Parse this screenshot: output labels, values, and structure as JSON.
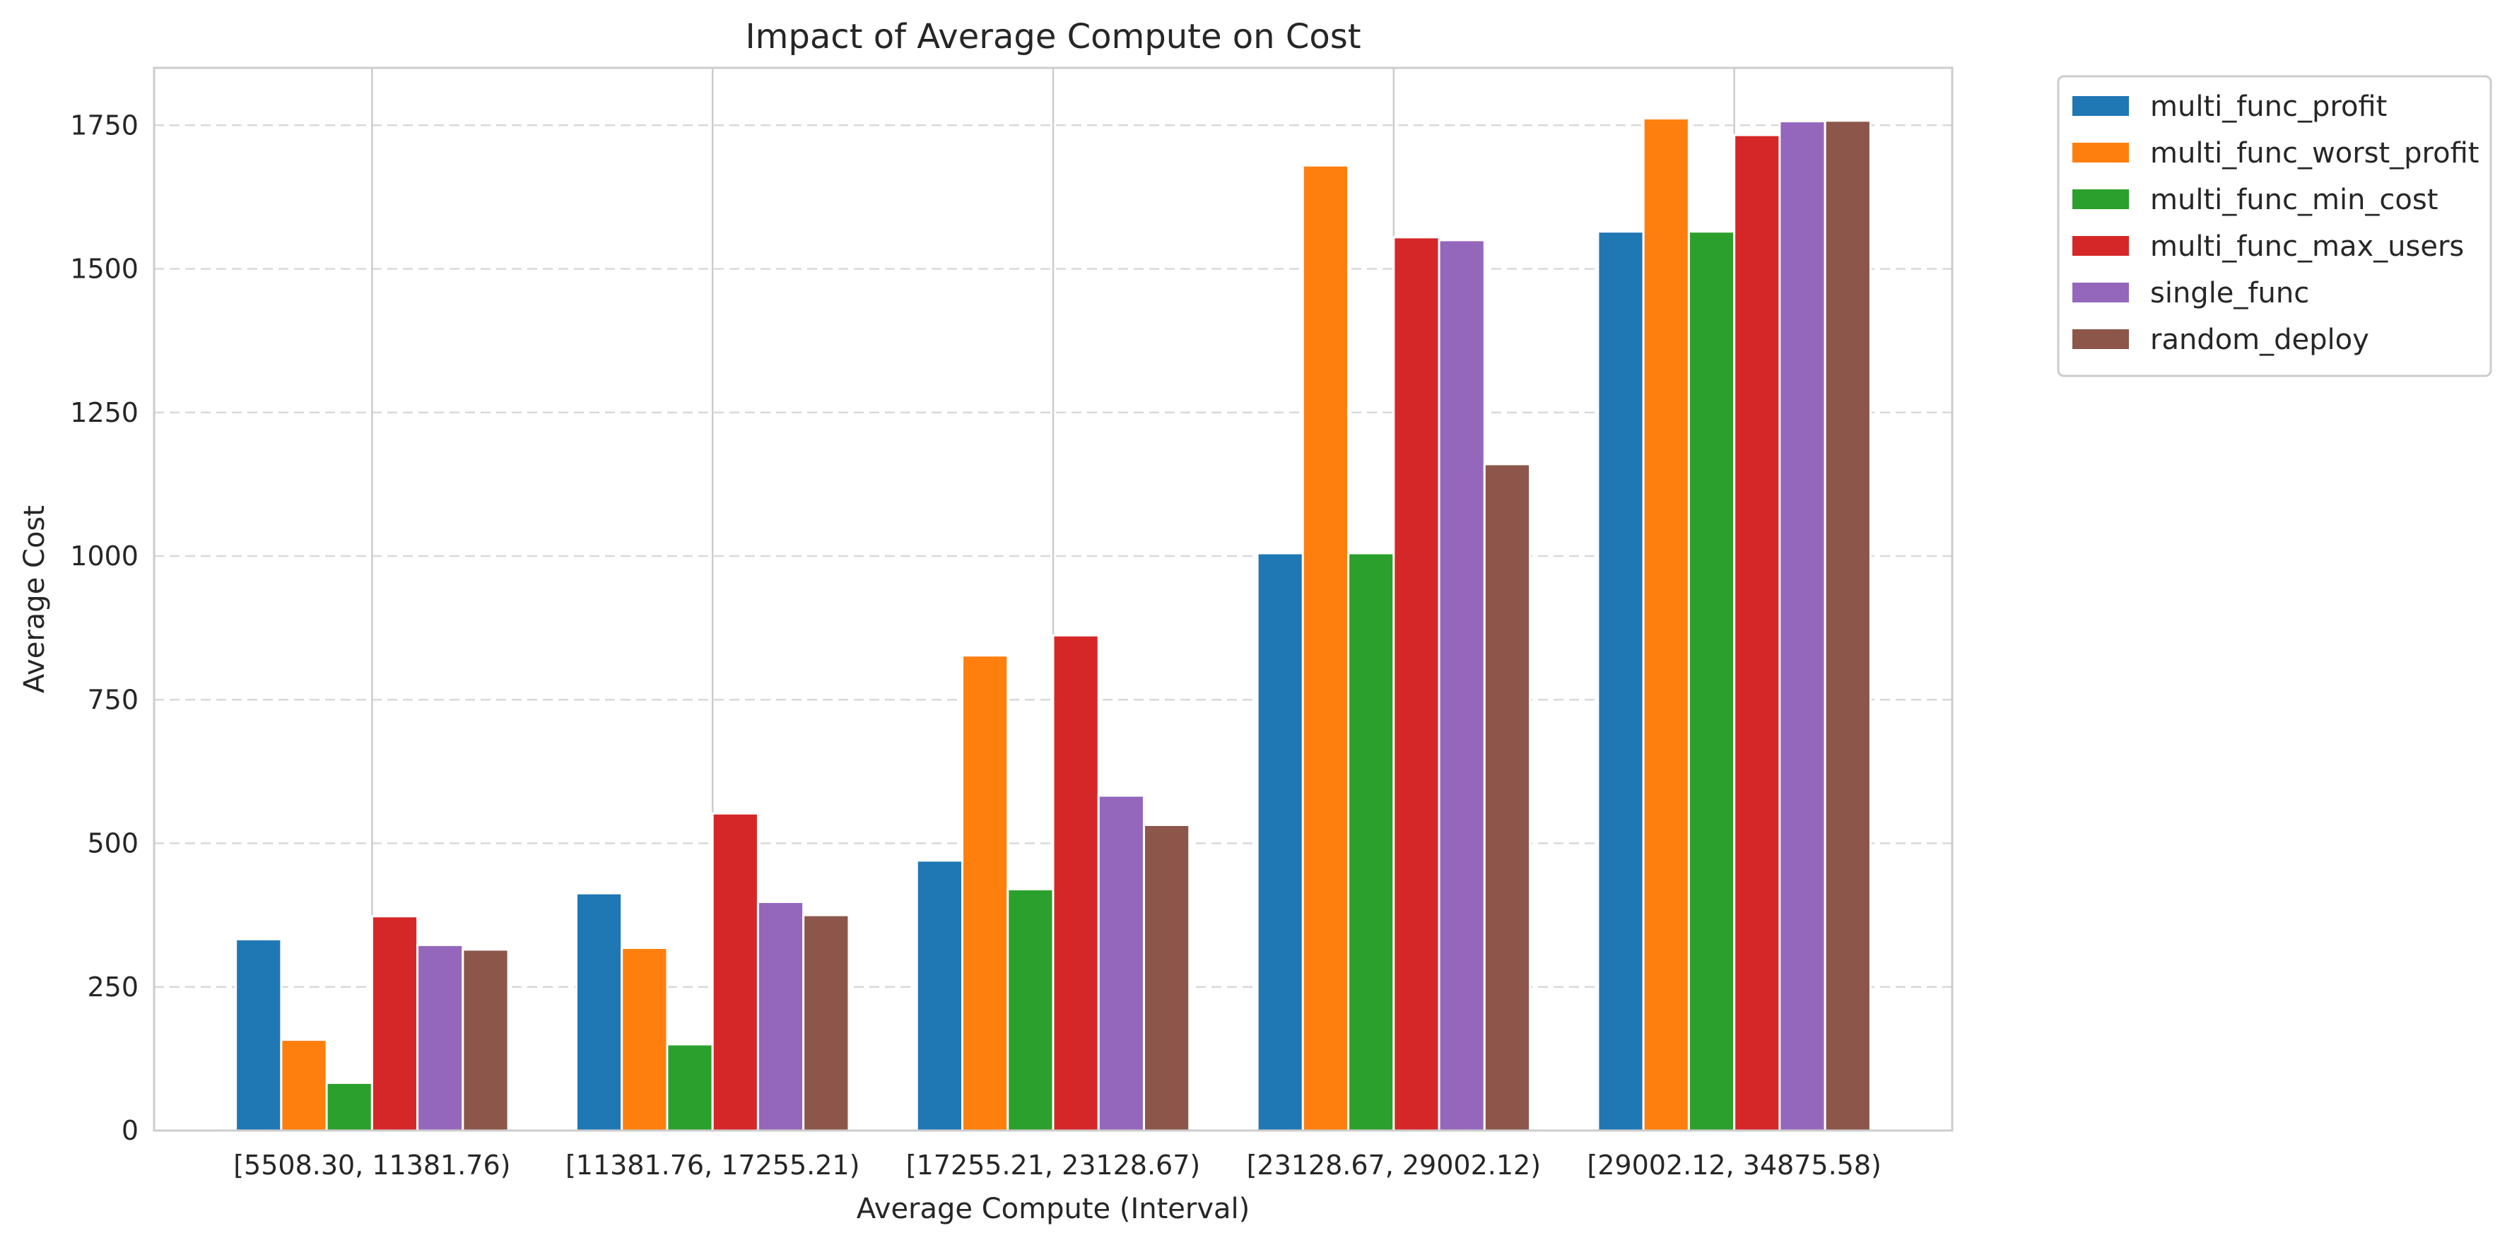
{
  "chart_data": {
    "type": "bar",
    "title": "Impact of Average Compute on Cost",
    "xlabel": "Average Compute (Interval)",
    "ylabel": "Average Cost",
    "ylim": [
      0,
      1850
    ],
    "yticks": [
      0,
      250,
      500,
      750,
      1000,
      1250,
      1500,
      1750
    ],
    "grid": {
      "y": true,
      "x": true
    },
    "legend_position": "outside-top-right",
    "categories": [
      "[5508.30, 11381.76)",
      "[11381.76, 17255.21)",
      "[17255.21, 23128.67)",
      "[23128.67, 29002.12)",
      "[29002.12, 34875.58)"
    ],
    "series": [
      {
        "name": "multi_func_profit",
        "color": "#1f77b4",
        "values": [
          333,
          413,
          470,
          1005,
          1565
        ]
      },
      {
        "name": "multi_func_worst_profit",
        "color": "#ff7f0e",
        "values": [
          158,
          318,
          827,
          1680,
          1762
        ]
      },
      {
        "name": "multi_func_min_cost",
        "color": "#2ca02c",
        "values": [
          83,
          150,
          420,
          1005,
          1565
        ]
      },
      {
        "name": "multi_func_max_users",
        "color": "#d62728",
        "values": [
          373,
          552,
          862,
          1555,
          1733
        ]
      },
      {
        "name": "single_func",
        "color": "#9467bd",
        "values": [
          323,
          398,
          583,
          1550,
          1757
        ]
      },
      {
        "name": "random_deploy",
        "color": "#8c564b",
        "values": [
          315,
          375,
          532,
          1160,
          1758
        ]
      }
    ]
  }
}
